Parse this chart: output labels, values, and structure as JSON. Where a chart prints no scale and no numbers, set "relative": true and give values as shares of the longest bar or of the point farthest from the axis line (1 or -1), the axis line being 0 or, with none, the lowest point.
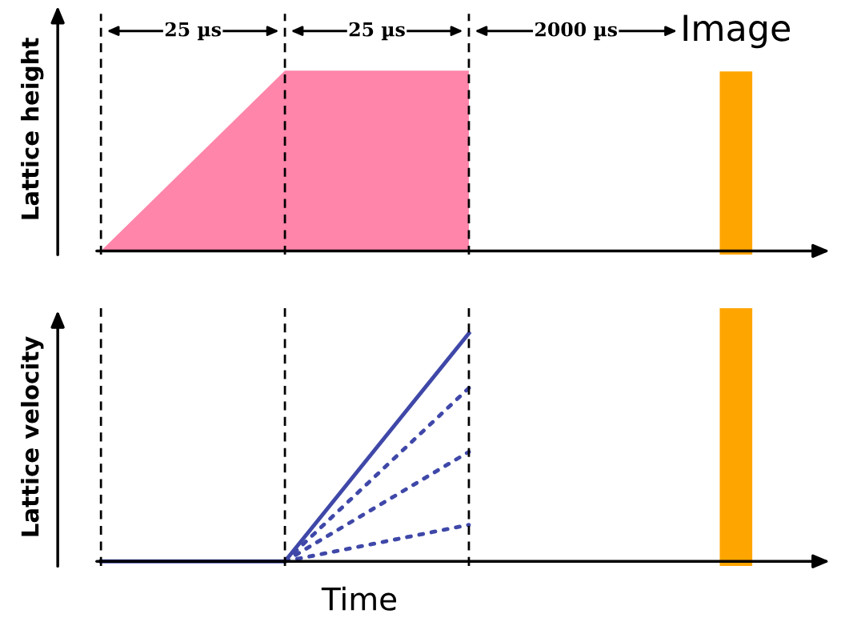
{
  "chart_data": [
    {
      "type": "area",
      "ylabel": "Lattice height",
      "relative": true,
      "grid": "x",
      "categories": [
        null,
        null,
        null
      ],
      "series": [
        {
          "color": "#ff85aa",
          "values": [
            0,
            1,
            1
          ]
        }
      ],
      "annotations": [
        "25 µs",
        "25 µs",
        "2000 µs",
        "Image"
      ]
    },
    {
      "type": "line",
      "ylabel": "Lattice velocity",
      "xlabel": "Time",
      "relative": true,
      "grid": "x",
      "categories": [
        null,
        null,
        null
      ],
      "series": [
        {
          "values": [
            0,
            0,
            1
          ],
          "color": "#3f48a8",
          "line_style": "solid"
        },
        {
          "values": [
            null,
            0,
            0.76
          ],
          "color": "#3f48a8",
          "line_style": "dotted"
        },
        {
          "values": [
            null,
            0,
            0.48
          ],
          "color": "#3f48a8",
          "line_style": "dotted"
        },
        {
          "values": [
            null,
            0,
            0.16
          ],
          "color": "#3f48a8",
          "line_style": "dotted"
        }
      ]
    }
  ]
}
